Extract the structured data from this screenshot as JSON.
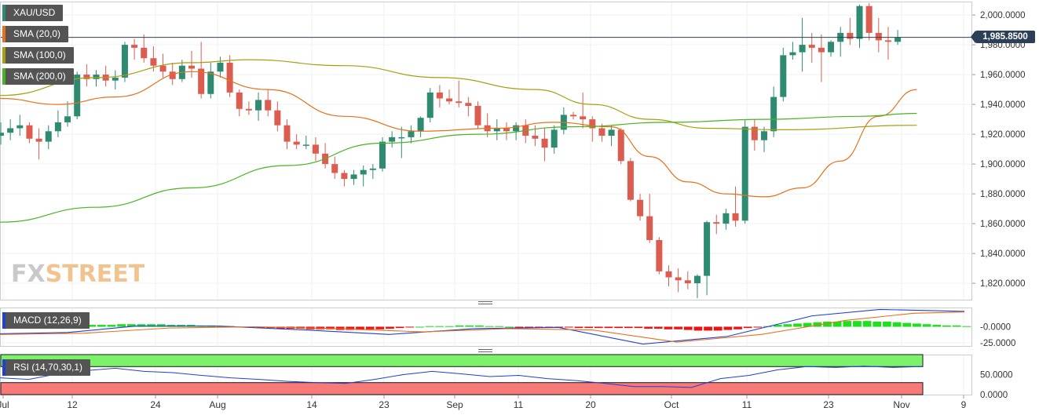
{
  "legend": {
    "symbol": "XAU/USD",
    "sma20": {
      "label": "SMA (20,0)",
      "color": "#e8701a"
    },
    "sma100": {
      "label": "SMA (100,0)",
      "color": "#a6a010"
    },
    "sma200": {
      "label": "SMA (200,0)",
      "color": "#49b320"
    },
    "macd": {
      "label": "MACD (12,26,9)",
      "color": "#1f3fd6"
    },
    "rsi": {
      "label": "RSI (14,70,30,1)",
      "color": "#1f3fd6"
    }
  },
  "current_price": "1,985.8500",
  "logo": {
    "part1": "FX",
    "part2": "STREET"
  },
  "chart_data": [
    {
      "type": "candlestick",
      "x_tick_labels": [
        "Jul",
        "12",
        "24",
        "Aug",
        "14",
        "23",
        "Sep",
        "11",
        "20",
        "Oct",
        "11",
        "23",
        "Nov",
        "9"
      ],
      "y_tick_labels": [
        "2,000.0000",
        "1,980.0000",
        "1,960.0000",
        "1,940.0000",
        "1,920.0000",
        "1,900.0000",
        "1,880.0000",
        "1,860.0000",
        "1,840.0000",
        "1,820.0000"
      ],
      "ylim": [
        1809,
        2009
      ],
      "colors": {
        "up": "#2f8a72",
        "down": "#dc5d4f"
      },
      "candles": [
        [
          1919,
          1928,
          1913,
          1921
        ],
        [
          1921,
          1930,
          1916,
          1924
        ],
        [
          1924,
          1933,
          1919,
          1926
        ],
        [
          1926,
          1928,
          1914,
          1917
        ],
        [
          1917,
          1924,
          1903,
          1915
        ],
        [
          1915,
          1926,
          1910,
          1922
        ],
        [
          1922,
          1936,
          1918,
          1928
        ],
        [
          1928,
          1942,
          1925,
          1932
        ],
        [
          1932,
          1962,
          1930,
          1960
        ],
        [
          1960,
          1967,
          1952,
          1957
        ],
        [
          1957,
          1963,
          1952,
          1960
        ],
        [
          1960,
          1966,
          1952,
          1956
        ],
        [
          1956,
          1963,
          1950,
          1958
        ],
        [
          1958,
          1982,
          1955,
          1980
        ],
        [
          1980,
          1984,
          1970,
          1978
        ],
        [
          1978,
          1987,
          1968,
          1971
        ],
        [
          1971,
          1979,
          1962,
          1966
        ],
        [
          1966,
          1974,
          1958,
          1962
        ],
        [
          1962,
          1968,
          1953,
          1957
        ],
        [
          1957,
          1970,
          1955,
          1966
        ],
        [
          1966,
          1976,
          1958,
          1964
        ],
        [
          1964,
          1982,
          1944,
          1947
        ],
        [
          1947,
          1968,
          1944,
          1962
        ],
        [
          1962,
          1972,
          1958,
          1968
        ],
        [
          1968,
          1973,
          1945,
          1948
        ],
        [
          1948,
          1950,
          1932,
          1937
        ],
        [
          1937,
          1942,
          1933,
          1936
        ],
        [
          1936,
          1948,
          1929,
          1943
        ],
        [
          1943,
          1950,
          1932,
          1936
        ],
        [
          1936,
          1942,
          1922,
          1926
        ],
        [
          1926,
          1930,
          1910,
          1915
        ],
        [
          1915,
          1920,
          1910,
          1913
        ],
        [
          1913,
          1919,
          1910,
          1913
        ],
        [
          1913,
          1918,
          1902,
          1907
        ],
        [
          1907,
          1914,
          1897,
          1900
        ],
        [
          1900,
          1905,
          1890,
          1894
        ],
        [
          1894,
          1896,
          1885,
          1890
        ],
        [
          1890,
          1896,
          1886,
          1893
        ],
        [
          1893,
          1899,
          1885,
          1896
        ],
        [
          1896,
          1900,
          1890,
          1897
        ],
        [
          1897,
          1918,
          1895,
          1915
        ],
        [
          1915,
          1922,
          1911,
          1918
        ],
        [
          1918,
          1925,
          1904,
          1918
        ],
        [
          1918,
          1926,
          1914,
          1922
        ],
        [
          1922,
          1932,
          1918,
          1931
        ],
        [
          1931,
          1951,
          1928,
          1948
        ],
        [
          1948,
          1953,
          1938,
          1944
        ],
        [
          1944,
          1950,
          1940,
          1942
        ],
        [
          1942,
          1956,
          1938,
          1941
        ],
        [
          1941,
          1945,
          1932,
          1939
        ],
        [
          1939,
          1942,
          1924,
          1926
        ],
        [
          1926,
          1934,
          1918,
          1922
        ],
        [
          1922,
          1930,
          1916,
          1924
        ],
        [
          1924,
          1928,
          1916,
          1922
        ],
        [
          1922,
          1928,
          1916,
          1926
        ],
        [
          1926,
          1930,
          1914,
          1919
        ],
        [
          1919,
          1926,
          1912,
          1917
        ],
        [
          1917,
          1924,
          1902,
          1911
        ],
        [
          1911,
          1926,
          1907,
          1923
        ],
        [
          1923,
          1938,
          1920,
          1933
        ],
        [
          1933,
          1935,
          1930,
          1932
        ],
        [
          1932,
          1948,
          1924,
          1930
        ],
        [
          1930,
          1932,
          1915,
          1924
        ],
        [
          1924,
          1927,
          1915,
          1919
        ],
        [
          1919,
          1926,
          1912,
          1923
        ],
        [
          1923,
          1924,
          1900,
          1902
        ],
        [
          1902,
          1904,
          1875,
          1876
        ],
        [
          1876,
          1880,
          1862,
          1865
        ],
        [
          1865,
          1880,
          1847,
          1849
        ],
        [
          1849,
          1851,
          1826,
          1828
        ],
        [
          1828,
          1832,
          1818,
          1824
        ],
        [
          1824,
          1830,
          1814,
          1822
        ],
        [
          1822,
          1828,
          1816,
          1820
        ],
        [
          1820,
          1826,
          1810,
          1825
        ],
        [
          1825,
          1862,
          1812,
          1861
        ],
        [
          1861,
          1866,
          1853,
          1860
        ],
        [
          1860,
          1870,
          1856,
          1867
        ],
        [
          1867,
          1885,
          1858,
          1862
        ],
        [
          1862,
          1930,
          1860,
          1925
        ],
        [
          1925,
          1930,
          1909,
          1916
        ],
        [
          1916,
          1925,
          1908,
          1922
        ],
        [
          1922,
          1952,
          1918,
          1945
        ],
        [
          1945,
          1978,
          1942,
          1973
        ],
        [
          1973,
          1982,
          1970,
          1975
        ],
        [
          1975,
          1998,
          1962,
          1980
        ],
        [
          1980,
          1988,
          1968,
          1978
        ],
        [
          1978,
          1987,
          1955,
          1975
        ],
        [
          1975,
          1983,
          1972,
          1982
        ],
        [
          1982,
          1992,
          1972,
          1988
        ],
        [
          1988,
          1998,
          1980,
          1984
        ],
        [
          1984,
          2007,
          1978,
          2006
        ],
        [
          2006,
          2008,
          1983,
          1988
        ],
        [
          1988,
          1998,
          1975,
          1983
        ],
        [
          1983,
          1992,
          1970,
          1982
        ],
        [
          1982,
          1990,
          1980,
          1985
        ]
      ],
      "series": [
        {
          "name": "SMA (20,0)",
          "points": [
            [
              0,
              1944
            ],
            [
              6,
              1940
            ],
            [
              12,
              1945
            ],
            [
              20,
              1962
            ],
            [
              28,
              1950
            ],
            [
              36,
              1932
            ],
            [
              44,
              1922
            ],
            [
              52,
              1924
            ],
            [
              58,
              1928
            ],
            [
              64,
              1925
            ],
            [
              68,
              1905
            ],
            [
              72,
              1888
            ],
            [
              76,
              1880
            ],
            [
              80,
              1878
            ],
            [
              84,
              1884
            ],
            [
              88,
              1902
            ],
            [
              92,
              1932
            ],
            [
              96,
              1950
            ]
          ]
        },
        {
          "name": "SMA (100,0)",
          "points": [
            [
              0,
              1946
            ],
            [
              10,
              1958
            ],
            [
              20,
              1968
            ],
            [
              26,
              1970
            ],
            [
              36,
              1966
            ],
            [
              46,
              1958
            ],
            [
              56,
              1950
            ],
            [
              62,
              1940
            ],
            [
              68,
              1930
            ],
            [
              74,
              1924
            ],
            [
              82,
              1923
            ],
            [
              96,
              1926
            ]
          ]
        },
        {
          "name": "SMA (200,0)",
          "points": [
            [
              0,
              1861
            ],
            [
              10,
              1871
            ],
            [
              20,
              1884
            ],
            [
              30,
              1899
            ],
            [
              40,
              1914
            ],
            [
              50,
              1920
            ],
            [
              60,
              1925
            ],
            [
              70,
              1928
            ],
            [
              80,
              1930
            ],
            [
              90,
              1932
            ],
            [
              96,
              1934
            ]
          ]
        }
      ]
    },
    {
      "type": "bar",
      "name": "MACD (12,26,9)",
      "y_tick_labels": [
        "-0.0000",
        "-25.0000"
      ],
      "ylim": [
        -30,
        30
      ],
      "histogram": [
        -2,
        -1,
        0,
        0,
        1,
        1,
        2,
        2,
        3,
        3,
        3,
        4,
        4,
        4,
        4,
        4,
        3,
        3,
        3,
        2,
        2,
        1,
        1,
        0,
        -1,
        -2,
        -2,
        -3,
        -3,
        -3,
        -4,
        -4,
        -4,
        -5,
        -5,
        -5,
        -4,
        -4,
        -3,
        -2,
        -1,
        0,
        1,
        1,
        1,
        2,
        2,
        2,
        1,
        1,
        0,
        -1,
        -1,
        -1,
        -1,
        -1,
        -1,
        -2,
        -2,
        -2,
        -2,
        -2,
        -2,
        -2,
        -3,
        -3,
        -4,
        -4,
        -5,
        -6,
        -6,
        -6,
        -5,
        -4,
        -2,
        -1,
        1,
        3,
        4,
        5,
        6,
        7,
        8,
        8,
        9,
        9,
        9,
        8,
        8,
        7,
        6,
        5,
        4,
        3,
        2,
        2,
        1
      ],
      "macd_line": [
        [
          0,
          -11
        ],
        [
          8,
          -9
        ],
        [
          16,
          1
        ],
        [
          26,
          1
        ],
        [
          36,
          -5
        ],
        [
          46,
          -12
        ],
        [
          56,
          -3
        ],
        [
          66,
          -1
        ],
        [
          76,
          -27
        ],
        [
          86,
          -15
        ],
        [
          96,
          17
        ],
        [
          104,
          27
        ],
        [
          114,
          24
        ]
      ],
      "signal_line": [
        [
          0,
          -12
        ],
        [
          10,
          -10
        ],
        [
          20,
          -2
        ],
        [
          30,
          0
        ],
        [
          40,
          -3
        ],
        [
          50,
          -8
        ],
        [
          60,
          -3
        ],
        [
          70,
          -5
        ],
        [
          80,
          -24
        ],
        [
          90,
          -12
        ],
        [
          100,
          10
        ],
        [
          108,
          21
        ],
        [
          114,
          23
        ]
      ]
    },
    {
      "type": "line",
      "name": "RSI (14,70,30,1)",
      "y_tick_labels": [
        "50.0000",
        "0.0000"
      ],
      "ylim": [
        0,
        100
      ],
      "rsi_line": [
        [
          0,
          42
        ],
        [
          3,
          38
        ],
        [
          6,
          52
        ],
        [
          9,
          60
        ],
        [
          12,
          66
        ],
        [
          15,
          58
        ],
        [
          18,
          55
        ],
        [
          21,
          48
        ],
        [
          24,
          42
        ],
        [
          27,
          38
        ],
        [
          30,
          33
        ],
        [
          33,
          30
        ],
        [
          36,
          28
        ],
        [
          39,
          38
        ],
        [
          42,
          50
        ],
        [
          45,
          58
        ],
        [
          48,
          52
        ],
        [
          51,
          45
        ],
        [
          54,
          48
        ],
        [
          57,
          40
        ],
        [
          60,
          35
        ],
        [
          63,
          28
        ],
        [
          66,
          20
        ],
        [
          69,
          20
        ],
        [
          72,
          18
        ],
        [
          75,
          40
        ],
        [
          78,
          48
        ],
        [
          81,
          62
        ],
        [
          84,
          70
        ],
        [
          87,
          68
        ],
        [
          90,
          71
        ],
        [
          93,
          68
        ],
        [
          96,
          70
        ]
      ]
    }
  ]
}
